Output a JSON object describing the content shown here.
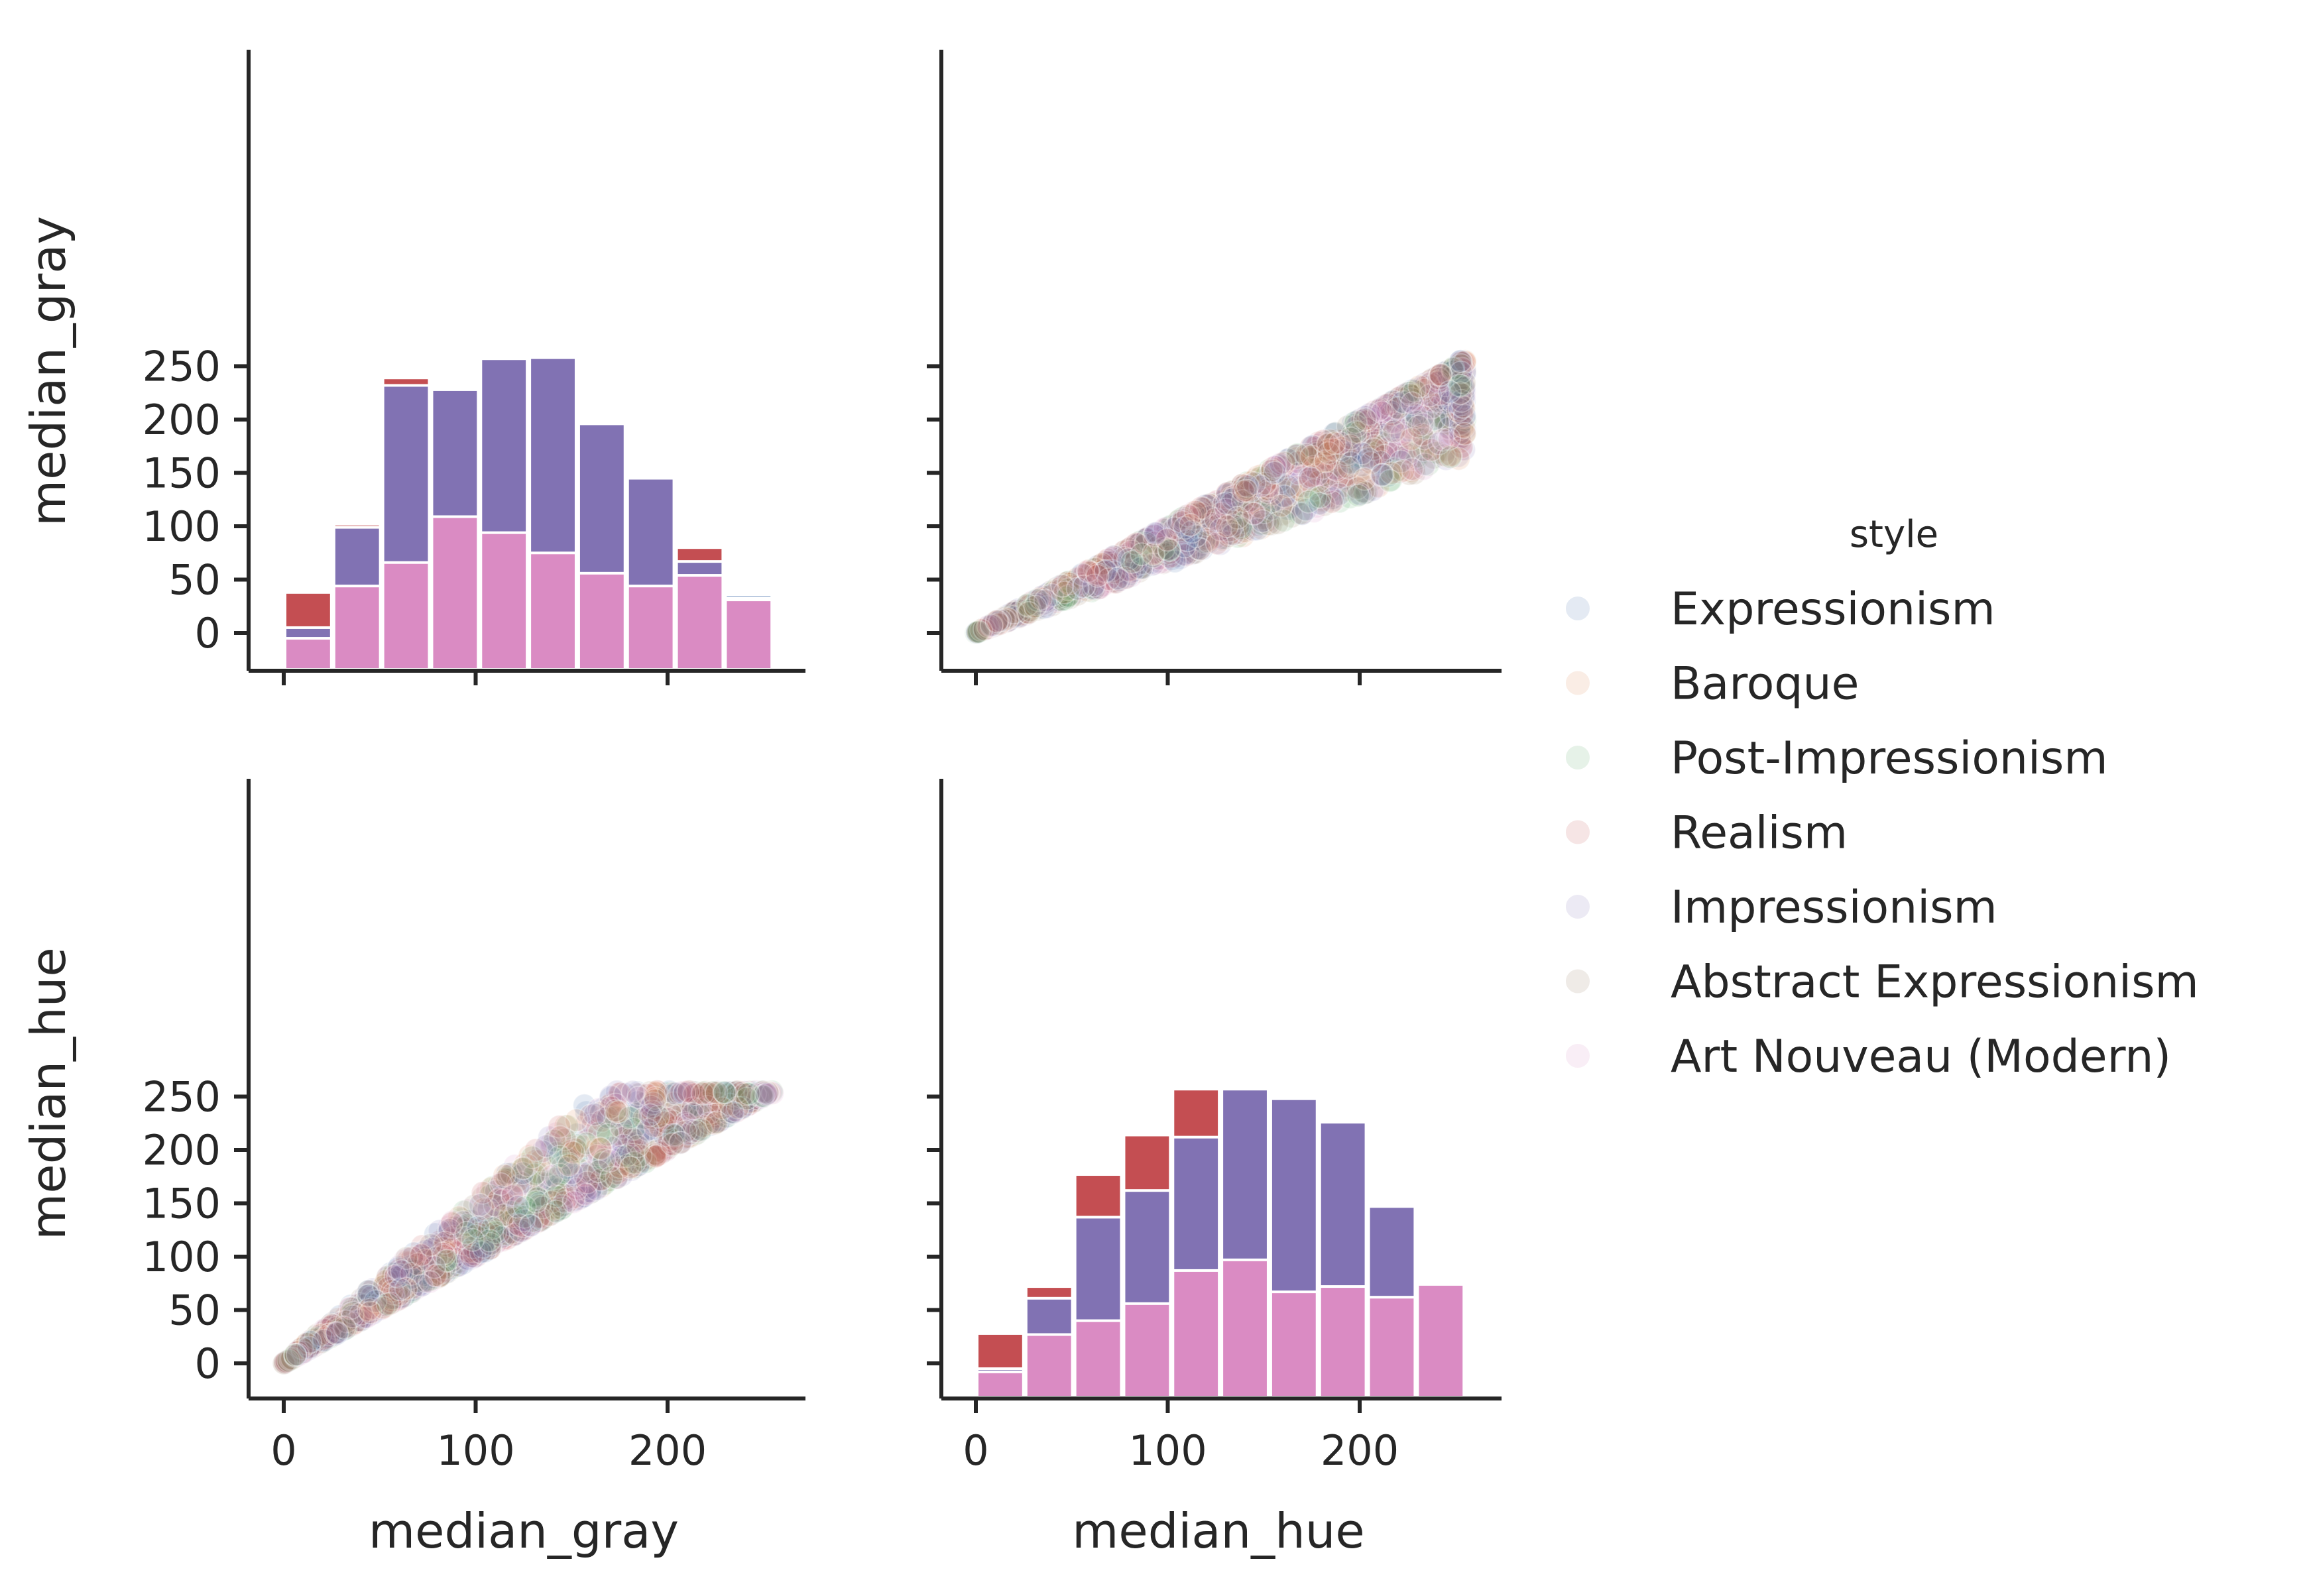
{
  "chart_data": [
    {
      "type": "bar",
      "panel": "median_gray vs median_gray (histogram)",
      "xlabel": "",
      "ylabel": "median_gray",
      "xlim": [
        -20,
        272
      ],
      "ylim": [
        -18,
        272
      ],
      "xticks": [
        0,
        100,
        200
      ],
      "yticks": [
        0,
        50,
        100,
        150,
        200,
        250
      ],
      "bin_edges": [
        0,
        25.5,
        51,
        76.5,
        102,
        127.5,
        153,
        178.5,
        204,
        229.5,
        255
      ],
      "series": [
        {
          "name": "Expressionism",
          "color": "#4c72b0",
          "values": [
            -2,
            100,
            232,
            228,
            257,
            258,
            196,
            145,
            68,
            36
          ]
        },
        {
          "name": "Realism",
          "color": "#c44e52",
          "values": [
            38,
            102,
            239,
            228,
            257,
            258,
            196,
            145,
            80,
            33
          ]
        },
        {
          "name": "Impressionism",
          "color": "#8172b3",
          "values": [
            5,
            99,
            232,
            228,
            257,
            258,
            196,
            145,
            67,
            33
          ]
        },
        {
          "name": "Art Nouveau (Modern)",
          "color": "#da8bc3",
          "values": [
            -5,
            44,
            66,
            109,
            94,
            75,
            56,
            44,
            54,
            31
          ]
        }
      ]
    },
    {
      "type": "scatter",
      "panel": "median_gray (x) vs median_hue (y)",
      "xlabel": "median_gray",
      "ylabel": "median_hue",
      "xlim": [
        -20,
        272
      ],
      "ylim": [
        -18,
        272
      ],
      "xticks": [
        0,
        100,
        200
      ],
      "yticks": [
        0,
        50,
        100,
        150,
        200,
        250
      ],
      "alpha": 0.15,
      "series_from_legend": true
    },
    {
      "type": "scatter",
      "panel": "median_hue (x) vs median_gray (y)",
      "xlabel": "",
      "ylabel": "",
      "xlim": [
        -20,
        272
      ],
      "ylim": [
        -18,
        272
      ],
      "xticks": [
        0,
        100,
        200
      ],
      "yticks": [
        0,
        50,
        100,
        150,
        200,
        250
      ],
      "alpha": 0.15,
      "series_from_legend": true
    },
    {
      "type": "bar",
      "panel": "median_hue vs median_hue (histogram)",
      "xlabel": "median_hue",
      "ylabel": "",
      "xlim": [
        -20,
        272
      ],
      "ylim": [
        -18,
        272
      ],
      "xticks": [
        0,
        100,
        200
      ],
      "yticks": [
        0,
        50,
        100,
        150,
        200,
        250
      ],
      "bin_edges": [
        0,
        25.5,
        51,
        76.5,
        102,
        127.5,
        153,
        178.5,
        204,
        229.5,
        255
      ],
      "series": [
        {
          "name": "Expressionism",
          "color": "#4c72b0",
          "values": [
            -2,
            61,
            137,
            162,
            212,
            257,
            248,
            226,
            147,
            31
          ]
        },
        {
          "name": "Realism",
          "color": "#c44e52",
          "values": [
            28,
            72,
            177,
            214,
            257,
            248,
            226,
            147,
            70,
            74
          ]
        },
        {
          "name": "Impressionism",
          "color": "#8172b3",
          "values": [
            -5,
            61,
            137,
            162,
            212,
            257,
            248,
            226,
            147,
            70
          ]
        },
        {
          "name": "Art Nouveau (Modern)",
          "color": "#da8bc3",
          "values": [
            -8,
            27,
            40,
            56,
            87,
            97,
            67,
            72,
            62,
            74
          ]
        }
      ]
    }
  ],
  "axes": {
    "row_labels": [
      "median_gray",
      "median_hue"
    ],
    "col_labels": [
      "median_gray",
      "median_hue"
    ],
    "xticks": [
      0,
      100,
      200
    ],
    "yticks": [
      0,
      50,
      100,
      150,
      200,
      250
    ]
  },
  "legend": {
    "title": "style",
    "placement": "right",
    "entries": [
      {
        "label": "Expressionism",
        "color": "#4c72b0"
      },
      {
        "label": "Baroque",
        "color": "#dd8452"
      },
      {
        "label": "Post-Impressionism",
        "color": "#55a868"
      },
      {
        "label": "Realism",
        "color": "#c44e52"
      },
      {
        "label": "Impressionism",
        "color": "#8172b3"
      },
      {
        "label": "Abstract Expressionism",
        "color": "#937860"
      },
      {
        "label": "Art Nouveau (Modern)",
        "color": "#da8bc3"
      }
    ]
  }
}
